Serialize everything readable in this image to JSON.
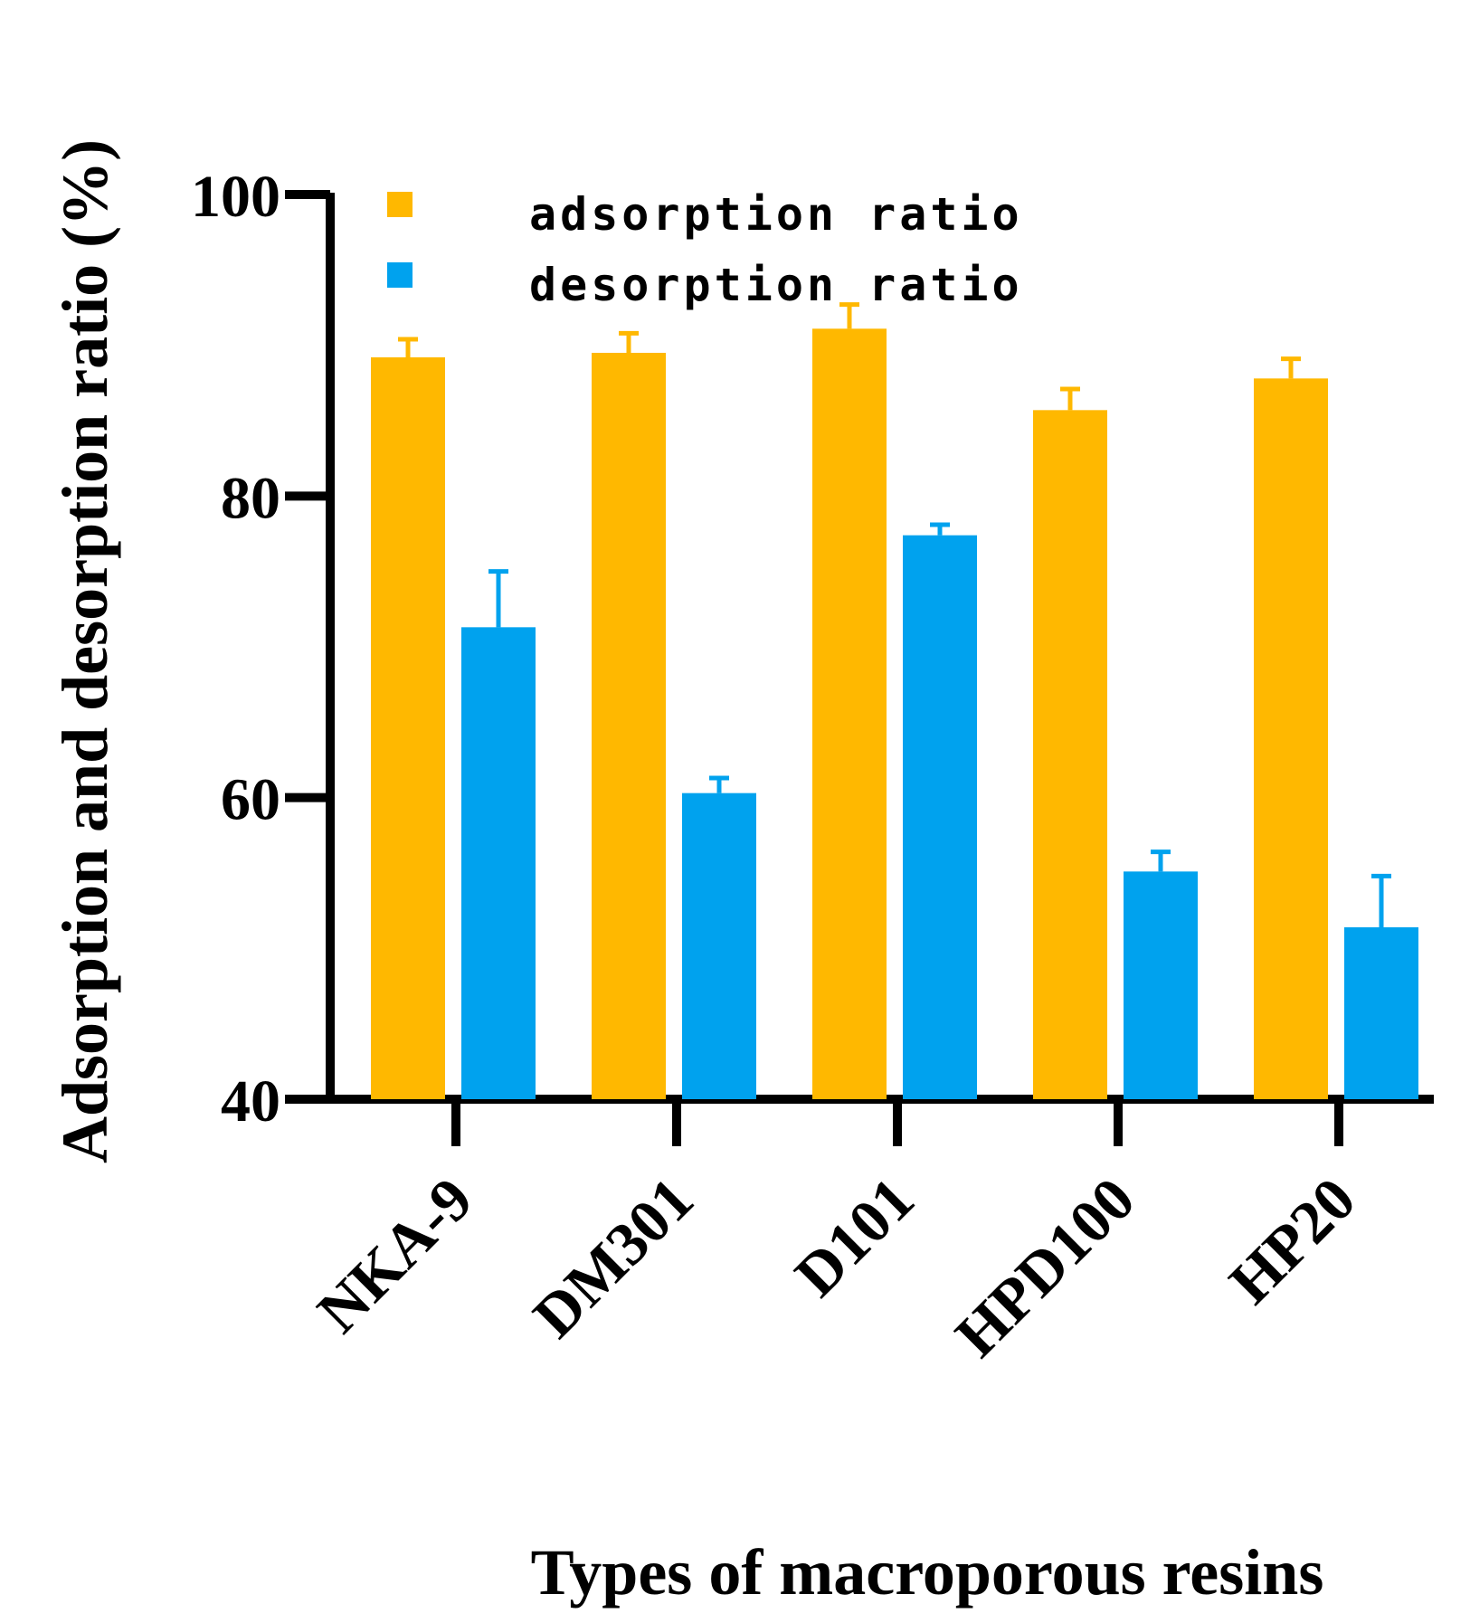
{
  "chart_data": {
    "type": "bar",
    "title": "",
    "xlabel": "Types of macroporous resins",
    "ylabel": "Adsorption and desorption ratio (%)",
    "ylim": [
      40,
      100
    ],
    "yticks": [
      40,
      60,
      80,
      100
    ],
    "ytick_labels": [
      "40",
      "60",
      "80",
      "100"
    ],
    "categories": [
      "NKA-9",
      "DM301",
      "D101",
      "HPD100",
      "HP20"
    ],
    "series": [
      {
        "name": "adsorption ratio",
        "color": "#FFB800",
        "values": [
          89.2,
          89.5,
          91.1,
          85.7,
          87.8
        ],
        "errors": [
          1.2,
          1.3,
          1.6,
          1.4,
          1.3
        ]
      },
      {
        "name": "desorption ratio",
        "color": "#00A2EE",
        "values": [
          71.3,
          60.3,
          77.4,
          55.1,
          51.4
        ],
        "errors": [
          3.7,
          1.0,
          0.7,
          1.3,
          3.4
        ]
      }
    ],
    "legend": {
      "position": "top-left"
    },
    "grid": false
  }
}
